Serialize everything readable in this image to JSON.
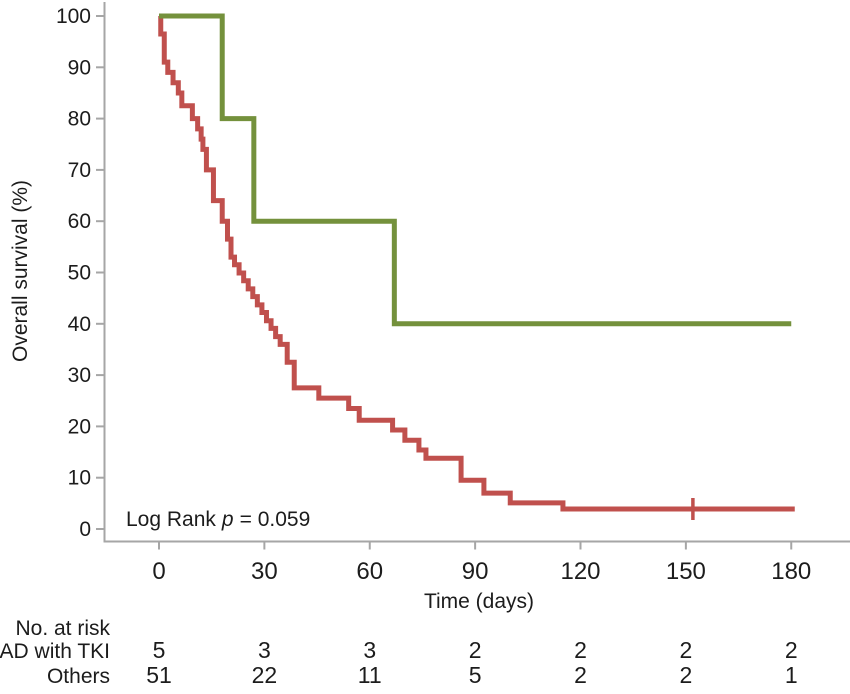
{
  "chart_data": {
    "type": "line",
    "variant": "kaplan_meier_step",
    "title": "",
    "x_axis": {
      "label": "Time (days)",
      "min": 0,
      "max": 180,
      "ticks": [
        0,
        30,
        60,
        90,
        120,
        150,
        180
      ]
    },
    "y_axis": {
      "label": "Overall survival (%)",
      "min": 0,
      "max": 100,
      "ticks": [
        0,
        10,
        20,
        30,
        40,
        50,
        60,
        70,
        80,
        90,
        100
      ]
    },
    "grid": "off",
    "legend": "none",
    "annotation": {
      "pre": "Log Rank",
      "italic_var": "p",
      "post": "= 0.059"
    },
    "series": [
      {
        "name": "AD with TKI",
        "color": "#74913c",
        "end_time": 180,
        "steps": [
          [
            0,
            100
          ],
          [
            18,
            80
          ],
          [
            27,
            60
          ],
          [
            67,
            40
          ]
        ],
        "censors": []
      },
      {
        "name": "Others",
        "color": "#c0504d",
        "end_time": 181,
        "steps": [
          [
            0,
            100
          ],
          [
            0.5,
            96.5
          ],
          [
            1.5,
            91
          ],
          [
            2.5,
            89
          ],
          [
            4,
            87
          ],
          [
            5.5,
            85
          ],
          [
            6.5,
            82.5
          ],
          [
            9.5,
            80
          ],
          [
            11,
            78
          ],
          [
            12,
            76
          ],
          [
            12.5,
            74
          ],
          [
            13.5,
            70
          ],
          [
            15.5,
            64
          ],
          [
            18,
            60
          ],
          [
            19.5,
            56.5
          ],
          [
            20.5,
            53
          ],
          [
            21.5,
            51.5
          ],
          [
            22.8,
            49.9
          ],
          [
            24.1,
            48.4
          ],
          [
            25.4,
            46.8
          ],
          [
            26.7,
            45.3
          ],
          [
            28,
            43.7
          ],
          [
            29.3,
            42.2
          ],
          [
            30.6,
            40.6
          ],
          [
            31.9,
            39.1
          ],
          [
            33.2,
            37.5
          ],
          [
            34.5,
            36
          ],
          [
            36.5,
            32.5
          ],
          [
            38.5,
            27.5
          ],
          [
            45.5,
            25.5
          ],
          [
            54,
            23.5
          ],
          [
            57,
            21.2
          ],
          [
            66.5,
            19.3
          ],
          [
            70,
            17.3
          ],
          [
            74,
            15.4
          ],
          [
            76,
            13.8
          ],
          [
            86,
            9.5
          ],
          [
            92.5,
            7
          ],
          [
            100,
            5.1
          ],
          [
            115,
            3.9
          ]
        ],
        "censors": [
          [
            152,
            3.9
          ]
        ]
      }
    ]
  },
  "risk_table": {
    "title": "No. at risk",
    "timepoints": [
      0,
      30,
      60,
      90,
      120,
      150,
      180
    ],
    "rows": [
      {
        "label": "AD with TKI",
        "values": [
          "5",
          "3",
          "3",
          "2",
          "2",
          "2",
          "2"
        ]
      },
      {
        "label": "Others",
        "values": [
          "51",
          "22",
          "11",
          "5",
          "2",
          "2",
          "1"
        ]
      }
    ]
  },
  "colors": {
    "ad_with_tki_curve": "#74913c",
    "others_curve": "#c0504d",
    "axis": "#a6a6a6",
    "text": "#1c1c1c"
  }
}
